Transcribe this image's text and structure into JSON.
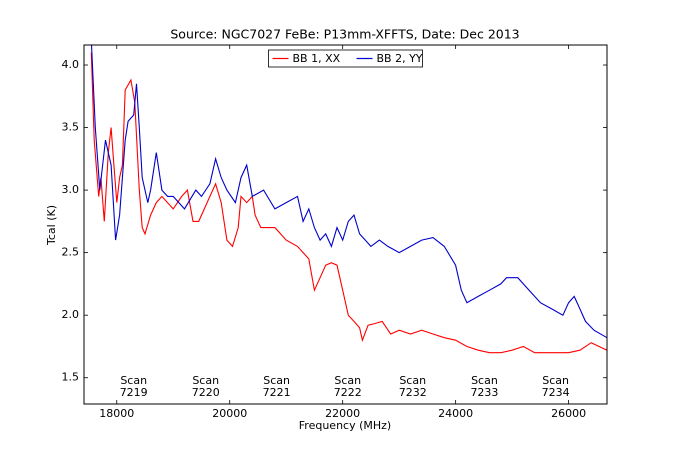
{
  "chart_data": {
    "type": "line",
    "title": "Source: NGC7027 FeBe: P13mm-XFFTS, Date: Dec 2013",
    "xlabel": "Frequency (MHz)",
    "ylabel": "Tcal (K)",
    "xlim": [
      17420,
      26680
    ],
    "ylim": [
      1.29,
      4.16
    ],
    "xticks": [
      18000,
      20000,
      22000,
      24000,
      26000
    ],
    "yticks": [
      1.5,
      {
        "value": 2,
        "label": "2.0"
      },
      2.5,
      {
        "value": 3,
        "label": "3.0"
      },
      3.5,
      {
        "value": 4,
        "label": "4.0"
      }
    ],
    "grid": false,
    "legend": "upper center",
    "series": [
      {
        "name": "BB 1, XX",
        "color": "#ff0000",
        "x": [
          17550,
          17600,
          17680,
          17720,
          17780,
          17850,
          17900,
          17950,
          18000,
          18050,
          18100,
          18150,
          18250,
          18320,
          18400,
          18450,
          18500,
          18600,
          18700,
          18800,
          19000,
          19150,
          19250,
          19350,
          19450,
          19600,
          19750,
          19850,
          19950,
          20050,
          20150,
          20200,
          20300,
          20400,
          20450,
          20550,
          20700,
          20800,
          21000,
          21200,
          21300,
          21400,
          21500,
          21600,
          21700,
          21800,
          21900,
          22000,
          22100,
          22200,
          22300,
          22350,
          22450,
          22550,
          22700,
          22850,
          23000,
          23200,
          23400,
          23600,
          23800,
          24000,
          24200,
          24400,
          24600,
          24800,
          25000,
          25200,
          25400,
          25600,
          25800,
          26000,
          26200,
          26400,
          26680
        ],
        "values": [
          4.1,
          3.4,
          2.95,
          3.1,
          2.75,
          3.3,
          3.5,
          3.2,
          2.9,
          3.1,
          3.2,
          3.8,
          3.88,
          3.7,
          3.0,
          2.7,
          2.65,
          2.8,
          2.9,
          2.95,
          2.85,
          2.95,
          3.0,
          2.75,
          2.75,
          2.9,
          3.05,
          2.9,
          2.6,
          2.55,
          2.7,
          2.95,
          2.9,
          2.95,
          2.8,
          2.7,
          2.7,
          2.7,
          2.6,
          2.55,
          2.5,
          2.45,
          2.2,
          2.3,
          2.4,
          2.42,
          2.4,
          2.2,
          2.0,
          1.95,
          1.9,
          1.8,
          1.92,
          1.93,
          1.95,
          1.85,
          1.88,
          1.85,
          1.88,
          1.85,
          1.82,
          1.8,
          1.75,
          1.72,
          1.7,
          1.7,
          1.72,
          1.75,
          1.7,
          1.7,
          1.7,
          1.7,
          1.72,
          1.78,
          1.72
        ]
      },
      {
        "name": "BB 2, YY",
        "color": "#0000cc",
        "x": [
          17550,
          17620,
          17700,
          17800,
          17900,
          17980,
          18050,
          18150,
          18200,
          18300,
          18350,
          18400,
          18450,
          18550,
          18600,
          18700,
          18800,
          18900,
          19000,
          19200,
          19400,
          19500,
          19650,
          19750,
          19850,
          19950,
          20100,
          20200,
          20300,
          20400,
          20600,
          20800,
          21000,
          21200,
          21300,
          21400,
          21500,
          21600,
          21700,
          21800,
          21900,
          22000,
          22100,
          22200,
          22300,
          22400,
          22500,
          22650,
          22800,
          23000,
          23200,
          23400,
          23600,
          23800,
          24000,
          24100,
          24200,
          24400,
          24600,
          24800,
          24900,
          25100,
          25300,
          25500,
          25700,
          25900,
          26000,
          26100,
          26200,
          26300,
          26450,
          26680
        ],
        "values": [
          4.2,
          3.5,
          3.0,
          3.4,
          3.2,
          2.6,
          2.8,
          3.4,
          3.55,
          3.6,
          3.85,
          3.5,
          3.1,
          2.9,
          3.0,
          3.3,
          3.0,
          2.95,
          2.95,
          2.85,
          3.0,
          2.95,
          3.05,
          3.25,
          3.1,
          3.0,
          2.9,
          3.1,
          3.2,
          2.95,
          3.0,
          2.85,
          2.9,
          2.95,
          2.75,
          2.85,
          2.7,
          2.6,
          2.65,
          2.55,
          2.7,
          2.6,
          2.75,
          2.8,
          2.65,
          2.6,
          2.55,
          2.6,
          2.55,
          2.5,
          2.55,
          2.6,
          2.62,
          2.55,
          2.4,
          2.2,
          2.1,
          2.15,
          2.2,
          2.25,
          2.3,
          2.3,
          2.2,
          2.1,
          2.05,
          2.0,
          2.1,
          2.15,
          2.05,
          1.95,
          1.88,
          1.82
        ]
      }
    ],
    "annotations": [
      {
        "lines": [
          "Scan",
          "7219"
        ],
        "x": 18300
      },
      {
        "lines": [
          "Scan",
          "7220"
        ],
        "x": 19575
      },
      {
        "lines": [
          "Scan",
          "7221"
        ],
        "x": 20830
      },
      {
        "lines": [
          "Scan",
          "7222"
        ],
        "x": 22090
      },
      {
        "lines": [
          "Scan",
          "7232"
        ],
        "x": 23240
      },
      {
        "lines": [
          "Scan",
          "7233"
        ],
        "x": 24510
      },
      {
        "lines": [
          "Scan",
          "7234"
        ],
        "x": 25770
      }
    ]
  }
}
